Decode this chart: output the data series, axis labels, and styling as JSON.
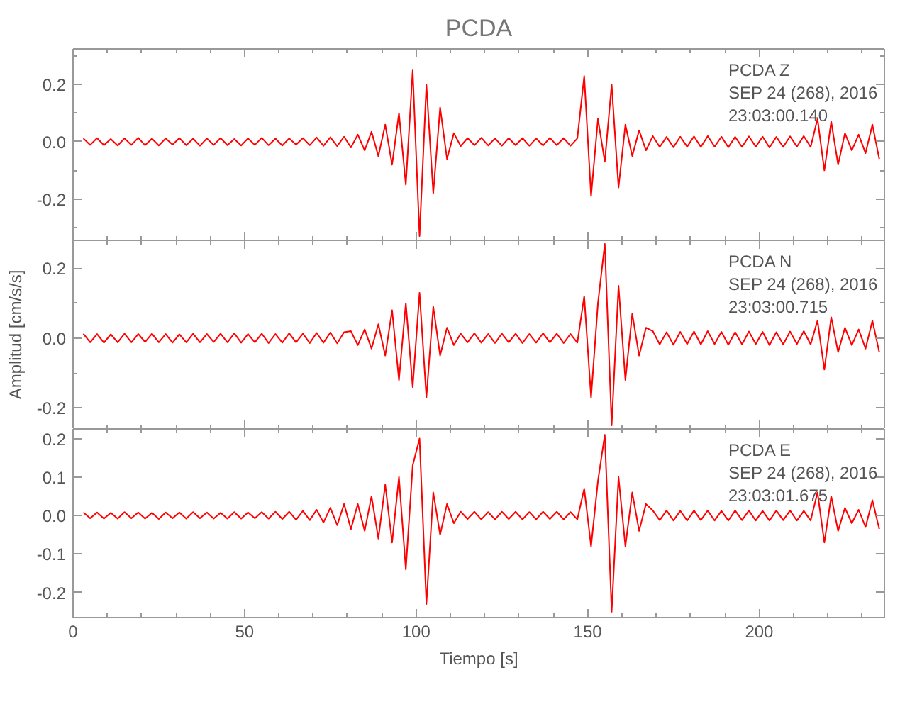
{
  "chart_data": [
    {
      "type": "line",
      "title": "PCDA",
      "annotations": [
        "PCDA   Z",
        "SEP 24 (268), 2016",
        "23:03:00.140"
      ],
      "tick_labels": "y",
      "grid": false,
      "xlim": [
        0,
        236.5
      ],
      "ylim": [
        -0.345,
        0.325
      ],
      "xticks": [
        0,
        {
          "value": 10,
          "label": null
        },
        {
          "value": 20,
          "label": null
        },
        {
          "value": 30,
          "label": null
        },
        {
          "value": 40,
          "label": null
        },
        50,
        {
          "value": 60,
          "label": null
        },
        {
          "value": 70,
          "label": null
        },
        {
          "value": 80,
          "label": null
        },
        {
          "value": 90,
          "label": null
        },
        100,
        {
          "value": 110,
          "label": null
        },
        {
          "value": 120,
          "label": null
        },
        {
          "value": 130,
          "label": null
        },
        {
          "value": 140,
          "label": null
        },
        150,
        {
          "value": 160,
          "label": null
        },
        {
          "value": 170,
          "label": null
        },
        {
          "value": 180,
          "label": null
        },
        {
          "value": 190,
          "label": null
        },
        200,
        {
          "value": 210,
          "label": null
        },
        {
          "value": 220,
          "label": null
        },
        {
          "value": 230,
          "label": null
        }
      ],
      "yticks": [
        {
          "value": -0.3,
          "label": null
        },
        {
          "value": -0.2,
          "label": "-0.2"
        },
        {
          "value": -0.1,
          "label": null
        },
        {
          "value": 0,
          "label": "0.0"
        },
        {
          "value": 0.1,
          "label": null
        },
        {
          "value": 0.2,
          "label": "0.2"
        },
        {
          "value": 0.3,
          "label": null
        }
      ],
      "x": [
        3,
        5,
        7,
        9,
        11,
        13,
        15,
        17,
        19,
        21,
        23,
        25,
        27,
        29,
        31,
        33,
        35,
        37,
        39,
        41,
        43,
        45,
        47,
        49,
        51,
        53,
        55,
        57,
        59,
        61,
        63,
        65,
        67,
        69,
        71,
        73,
        75,
        77,
        79,
        81,
        83,
        85,
        87,
        89,
        91,
        93,
        95,
        97,
        99,
        101,
        103,
        105,
        107,
        109,
        111,
        113,
        115,
        117,
        119,
        121,
        123,
        125,
        127,
        129,
        131,
        133,
        135,
        137,
        139,
        141,
        143,
        145,
        147,
        149,
        151,
        153,
        155,
        157,
        159,
        161,
        163,
        165,
        167,
        169,
        171,
        173,
        175,
        177,
        179,
        181,
        183,
        185,
        187,
        189,
        191,
        193,
        195,
        197,
        199,
        201,
        203,
        205,
        207,
        209,
        211,
        213,
        215,
        217,
        219,
        221,
        223,
        225,
        227,
        229,
        231,
        233,
        235
      ],
      "series": [
        {
          "color": "#ff0000",
          "values": [
            0.012,
            -0.011,
            0.013,
            -0.012,
            0.01,
            -0.013,
            0.012,
            -0.011,
            0.014,
            -0.012,
            0.011,
            -0.013,
            0.012,
            -0.01,
            0.013,
            -0.012,
            0.011,
            -0.014,
            0.012,
            -0.011,
            0.013,
            -0.012,
            0.01,
            -0.013,
            0.012,
            -0.011,
            0.014,
            -0.012,
            0.011,
            -0.013,
            0.012,
            -0.01,
            0.013,
            -0.012,
            0.015,
            -0.014,
            0.016,
            -0.015,
            0.018,
            -0.02,
            0.025,
            -0.03,
            0.035,
            -0.05,
            0.06,
            -0.08,
            0.1,
            -0.15,
            0.25,
            -0.33,
            0.2,
            -0.18,
            0.12,
            -0.06,
            0.03,
            -0.015,
            0.013,
            -0.012,
            0.014,
            -0.013,
            0.012,
            -0.014,
            0.013,
            -0.012,
            0.013,
            -0.014,
            0.012,
            -0.013,
            0.014,
            -0.012,
            0.013,
            -0.014,
            0.012,
            0.23,
            -0.19,
            0.08,
            -0.07,
            0.2,
            -0.16,
            0.06,
            -0.05,
            0.04,
            -0.03,
            0.02,
            -0.018,
            0.017,
            -0.019,
            0.018,
            -0.017,
            0.019,
            -0.018,
            0.02,
            -0.017,
            0.018,
            -0.019,
            0.017,
            -0.018,
            0.019,
            -0.017,
            0.018,
            -0.02,
            0.017,
            -0.018,
            0.019,
            -0.017,
            0.02,
            -0.018,
            0.08,
            -0.1,
            0.07,
            -0.08,
            0.03,
            -0.03,
            0.025,
            -0.04,
            0.06,
            -0.06
          ]
        }
      ]
    },
    {
      "type": "line",
      "ylabel": "Amplitud [cm/s/s]",
      "annotations": [
        "PCDA   N",
        "SEP 24 (268), 2016",
        "23:03:00.715"
      ],
      "tick_labels": "y",
      "grid": false,
      "xlim": [
        0,
        236.5
      ],
      "ylim": [
        -0.26,
        0.28
      ],
      "xticks": [
        0,
        {
          "value": 10,
          "label": null
        },
        {
          "value": 20,
          "label": null
        },
        {
          "value": 30,
          "label": null
        },
        {
          "value": 40,
          "label": null
        },
        50,
        {
          "value": 60,
          "label": null
        },
        {
          "value": 70,
          "label": null
        },
        {
          "value": 80,
          "label": null
        },
        {
          "value": 90,
          "label": null
        },
        100,
        {
          "value": 110,
          "label": null
        },
        {
          "value": 120,
          "label": null
        },
        {
          "value": 130,
          "label": null
        },
        {
          "value": 140,
          "label": null
        },
        150,
        {
          "value": 160,
          "label": null
        },
        {
          "value": 170,
          "label": null
        },
        {
          "value": 180,
          "label": null
        },
        {
          "value": 190,
          "label": null
        },
        200,
        {
          "value": 210,
          "label": null
        },
        {
          "value": 220,
          "label": null
        },
        {
          "value": 230,
          "label": null
        }
      ],
      "yticks": [
        {
          "value": -0.2,
          "label": "-0.2"
        },
        {
          "value": -0.1,
          "label": null
        },
        {
          "value": 0,
          "label": "0.0"
        },
        {
          "value": 0.1,
          "label": null
        },
        {
          "value": 0.2,
          "label": "0.2"
        }
      ],
      "x": [
        3,
        5,
        7,
        9,
        11,
        13,
        15,
        17,
        19,
        21,
        23,
        25,
        27,
        29,
        31,
        33,
        35,
        37,
        39,
        41,
        43,
        45,
        47,
        49,
        51,
        53,
        55,
        57,
        59,
        61,
        63,
        65,
        67,
        69,
        71,
        73,
        75,
        77,
        79,
        81,
        83,
        85,
        87,
        89,
        91,
        93,
        95,
        97,
        99,
        101,
        103,
        105,
        107,
        109,
        111,
        113,
        115,
        117,
        119,
        121,
        123,
        125,
        127,
        129,
        131,
        133,
        135,
        137,
        139,
        141,
        143,
        145,
        147,
        149,
        151,
        153,
        155,
        157,
        159,
        161,
        163,
        165,
        167,
        169,
        171,
        173,
        175,
        177,
        179,
        181,
        183,
        185,
        187,
        189,
        191,
        193,
        195,
        197,
        199,
        201,
        203,
        205,
        207,
        209,
        211,
        213,
        215,
        217,
        219,
        221,
        223,
        225,
        227,
        229,
        231,
        233,
        235
      ],
      "series": [
        {
          "color": "#ff0000",
          "values": [
            0.013,
            -0.012,
            0.012,
            -0.013,
            0.011,
            -0.012,
            0.013,
            -0.012,
            0.012,
            -0.011,
            0.013,
            -0.012,
            0.012,
            -0.013,
            0.011,
            -0.012,
            0.013,
            -0.012,
            0.012,
            -0.011,
            0.013,
            -0.012,
            0.014,
            -0.013,
            0.012,
            -0.012,
            0.013,
            -0.014,
            0.012,
            -0.013,
            0.014,
            -0.012,
            0.013,
            -0.014,
            0.015,
            -0.013,
            0.016,
            -0.015,
            0.017,
            0.02,
            -0.02,
            0.025,
            -0.03,
            0.04,
            -0.05,
            0.08,
            -0.12,
            0.1,
            -0.14,
            0.13,
            -0.17,
            0.09,
            -0.05,
            0.03,
            -0.02,
            0.013,
            -0.012,
            0.014,
            -0.013,
            0.012,
            -0.014,
            0.013,
            -0.012,
            0.013,
            -0.014,
            0.012,
            -0.013,
            0.014,
            -0.012,
            0.013,
            -0.014,
            0.012,
            -0.013,
            0.12,
            -0.17,
            0.1,
            0.27,
            -0.25,
            0.15,
            -0.12,
            0.07,
            -0.05,
            0.03,
            0.02,
            -0.018,
            0.017,
            -0.019,
            0.018,
            -0.017,
            0.019,
            -0.018,
            0.02,
            -0.017,
            0.018,
            -0.019,
            0.017,
            -0.018,
            0.019,
            -0.017,
            0.018,
            -0.02,
            0.017,
            -0.018,
            0.019,
            -0.017,
            0.02,
            -0.018,
            0.05,
            -0.09,
            0.06,
            -0.04,
            0.03,
            -0.02,
            0.025,
            -0.03,
            0.05,
            -0.04
          ]
        }
      ]
    },
    {
      "type": "line",
      "xlabel": "Tiempo [s]",
      "annotations": [
        "PCDA   E",
        "SEP 24 (268), 2016",
        "23:03:01.675"
      ],
      "grid": false,
      "xlim": [
        0,
        236.5
      ],
      "ylim": [
        -0.265,
        0.225
      ],
      "xticks": [
        0,
        {
          "value": 10,
          "label": null
        },
        {
          "value": 20,
          "label": null
        },
        {
          "value": 30,
          "label": null
        },
        {
          "value": 40,
          "label": null
        },
        50,
        {
          "value": 60,
          "label": null
        },
        {
          "value": 70,
          "label": null
        },
        {
          "value": 80,
          "label": null
        },
        {
          "value": 90,
          "label": null
        },
        100,
        {
          "value": 110,
          "label": null
        },
        {
          "value": 120,
          "label": null
        },
        {
          "value": 130,
          "label": null
        },
        {
          "value": 140,
          "label": null
        },
        150,
        {
          "value": 160,
          "label": null
        },
        {
          "value": 170,
          "label": null
        },
        {
          "value": 180,
          "label": null
        },
        {
          "value": 190,
          "label": null
        },
        200,
        {
          "value": 210,
          "label": null
        },
        {
          "value": 220,
          "label": null
        },
        {
          "value": 230,
          "label": null
        }
      ],
      "yticks": [
        {
          "value": -0.2,
          "label": "-0.2"
        },
        {
          "value": -0.1,
          "label": "-0.1"
        },
        {
          "value": 0,
          "label": "0.0"
        },
        {
          "value": 0.1,
          "label": "0.1"
        },
        {
          "value": 0.2,
          "label": "0.2"
        }
      ],
      "x": [
        3,
        5,
        7,
        9,
        11,
        13,
        15,
        17,
        19,
        21,
        23,
        25,
        27,
        29,
        31,
        33,
        35,
        37,
        39,
        41,
        43,
        45,
        47,
        49,
        51,
        53,
        55,
        57,
        59,
        61,
        63,
        65,
        67,
        69,
        71,
        73,
        75,
        77,
        79,
        81,
        83,
        85,
        87,
        89,
        91,
        93,
        95,
        97,
        99,
        101,
        103,
        105,
        107,
        109,
        111,
        113,
        115,
        117,
        119,
        121,
        123,
        125,
        127,
        129,
        131,
        133,
        135,
        137,
        139,
        141,
        143,
        145,
        147,
        149,
        151,
        153,
        155,
        157,
        159,
        161,
        163,
        165,
        167,
        169,
        171,
        173,
        175,
        177,
        179,
        181,
        183,
        185,
        187,
        189,
        191,
        193,
        195,
        197,
        199,
        201,
        203,
        205,
        207,
        209,
        211,
        213,
        215,
        217,
        219,
        221,
        223,
        225,
        227,
        229,
        231,
        233,
        235
      ],
      "series": [
        {
          "color": "#ff0000",
          "values": [
            0.008,
            -0.007,
            0.008,
            -0.008,
            0.007,
            -0.008,
            0.009,
            -0.007,
            0.008,
            -0.008,
            0.007,
            -0.009,
            0.008,
            -0.007,
            0.008,
            -0.008,
            0.009,
            -0.007,
            0.008,
            -0.008,
            0.007,
            -0.008,
            0.009,
            -0.008,
            0.008,
            -0.007,
            0.009,
            -0.008,
            0.01,
            -0.009,
            0.01,
            -0.011,
            0.012,
            -0.012,
            0.015,
            -0.018,
            0.02,
            -0.025,
            0.03,
            -0.035,
            0.03,
            -0.04,
            0.05,
            -0.06,
            0.08,
            -0.07,
            0.1,
            -0.14,
            0.13,
            0.2,
            -0.23,
            0.06,
            -0.05,
            0.03,
            -0.02,
            0.01,
            -0.009,
            0.01,
            -0.01,
            0.009,
            -0.01,
            0.01,
            -0.009,
            0.01,
            -0.01,
            0.009,
            -0.01,
            0.01,
            -0.009,
            0.01,
            -0.01,
            0.009,
            -0.01,
            0.07,
            -0.08,
            0.09,
            0.21,
            -0.25,
            0.1,
            -0.08,
            0.06,
            -0.04,
            0.03,
            0.013,
            -0.012,
            0.013,
            -0.013,
            0.012,
            -0.013,
            0.013,
            -0.012,
            0.013,
            -0.013,
            0.012,
            -0.013,
            0.013,
            -0.012,
            0.013,
            -0.013,
            0.012,
            -0.013,
            0.013,
            -0.012,
            0.013,
            -0.013,
            0.012,
            -0.013,
            0.06,
            -0.07,
            0.05,
            -0.04,
            0.02,
            -0.02,
            0.015,
            -0.03,
            0.04,
            -0.035
          ]
        }
      ]
    }
  ]
}
